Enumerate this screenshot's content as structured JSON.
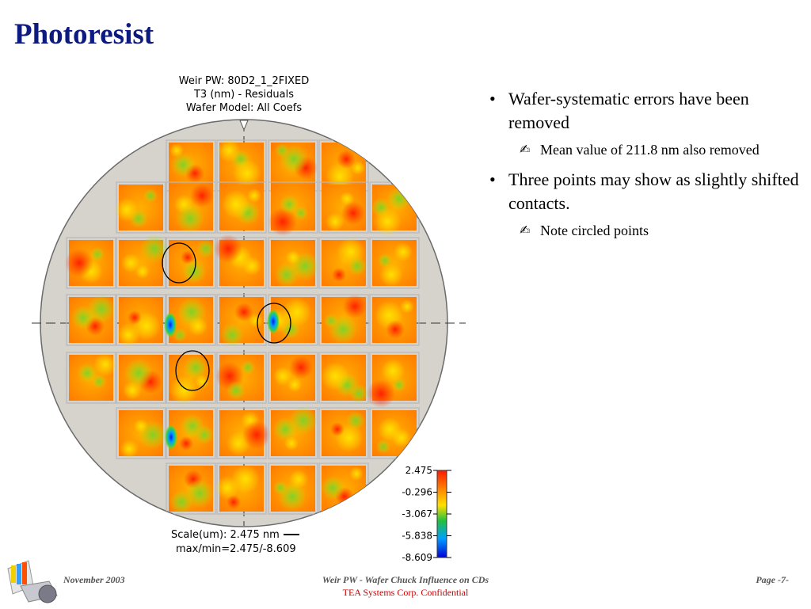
{
  "slide": {
    "title": "Photoresist"
  },
  "figure": {
    "title_lines": [
      "Weir PW: 80D2_1_2FIXED",
      "T3 (nm) - Residuals",
      "Wafer Model: All Coefs"
    ],
    "scale_label": "Scale(um): 2.475 nm",
    "maxmin_label": "max/min=2.475/-8.609",
    "colorbar_ticks": [
      "2.475",
      "-0.296",
      "-3.067",
      "-5.838",
      "-8.609"
    ],
    "colorbar_colors": [
      "#ff1800",
      "#ff8800",
      "#ffe000",
      "#20c040",
      "#00a0ff",
      "#0000d8"
    ],
    "circled_points": 3
  },
  "bullets": [
    {
      "text": "Wafer-systematic errors have been removed",
      "subs": [
        "Mean value of 211.8 nm also removed"
      ]
    },
    {
      "text": "Three points may show as slightly shifted contacts.",
      "subs": [
        "Note circled points"
      ]
    }
  ],
  "footer": {
    "date": "November 2003",
    "center_title": "Weir PW - Wafer Chuck Influence on CDs",
    "confidential": "TEA Systems Corp. Confidential",
    "page": "Page -7-"
  },
  "icons": {
    "bullet": "bullet-dot-icon",
    "sub_bullet": "writing-hand-icon",
    "logo": "tea-systems-logo"
  }
}
